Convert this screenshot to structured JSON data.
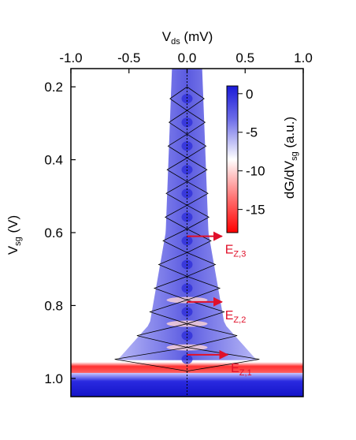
{
  "chart_data": {
    "type": "heatmap",
    "title": "",
    "x_axis": {
      "label_main": "V",
      "label_sub": "ds",
      "label_unit": " (mV)",
      "range": [
        -1.0,
        1.0
      ],
      "ticks": [
        -1.0,
        -0.5,
        0.0,
        0.5,
        1.0
      ],
      "tick_labels": [
        "-1.0",
        "-0.5",
        "0.0",
        "0.5",
        "1.0"
      ],
      "position": "top"
    },
    "y_axis": {
      "label_main": "V",
      "label_sub": "sg",
      "label_unit": " (V)",
      "range": [
        0.15,
        1.05
      ],
      "inverted": true,
      "ticks": [
        0.2,
        0.4,
        0.6,
        0.8,
        1.0
      ],
      "tick_labels": [
        "0.2",
        "0.4",
        "0.6",
        "0.8",
        "1.0"
      ]
    },
    "colorbar": {
      "label_parts": [
        "dG/dV",
        "sg",
        " (a.u.)"
      ],
      "range": [
        -18,
        1
      ],
      "ticks": [
        0,
        -5,
        -10,
        -15
      ],
      "tick_labels": [
        "0",
        "-5",
        "-10",
        "-15"
      ],
      "colors": {
        "high": "#2020e0",
        "mid": "#ffffff",
        "low": "#ff0000"
      }
    },
    "diamond_edges": [
      0.2,
      0.265,
      0.33,
      0.395,
      0.46,
      0.525,
      0.59,
      0.655,
      0.72,
      0.785,
      0.85,
      0.915,
      0.98
    ],
    "annotations": [
      {
        "main": "E",
        "sub": "Z,3",
        "y": 0.61,
        "x_from": 0.0,
        "x_to": 0.3
      },
      {
        "main": "E",
        "sub": "Z,2",
        "y": 0.79,
        "x_from": 0.0,
        "x_to": 0.3
      },
      {
        "main": "E",
        "sub": "Z,1",
        "y": 0.935,
        "x_from": 0.0,
        "x_to": 0.35
      }
    ],
    "grid": false,
    "legend": "colorbar top-right inside plot"
  }
}
